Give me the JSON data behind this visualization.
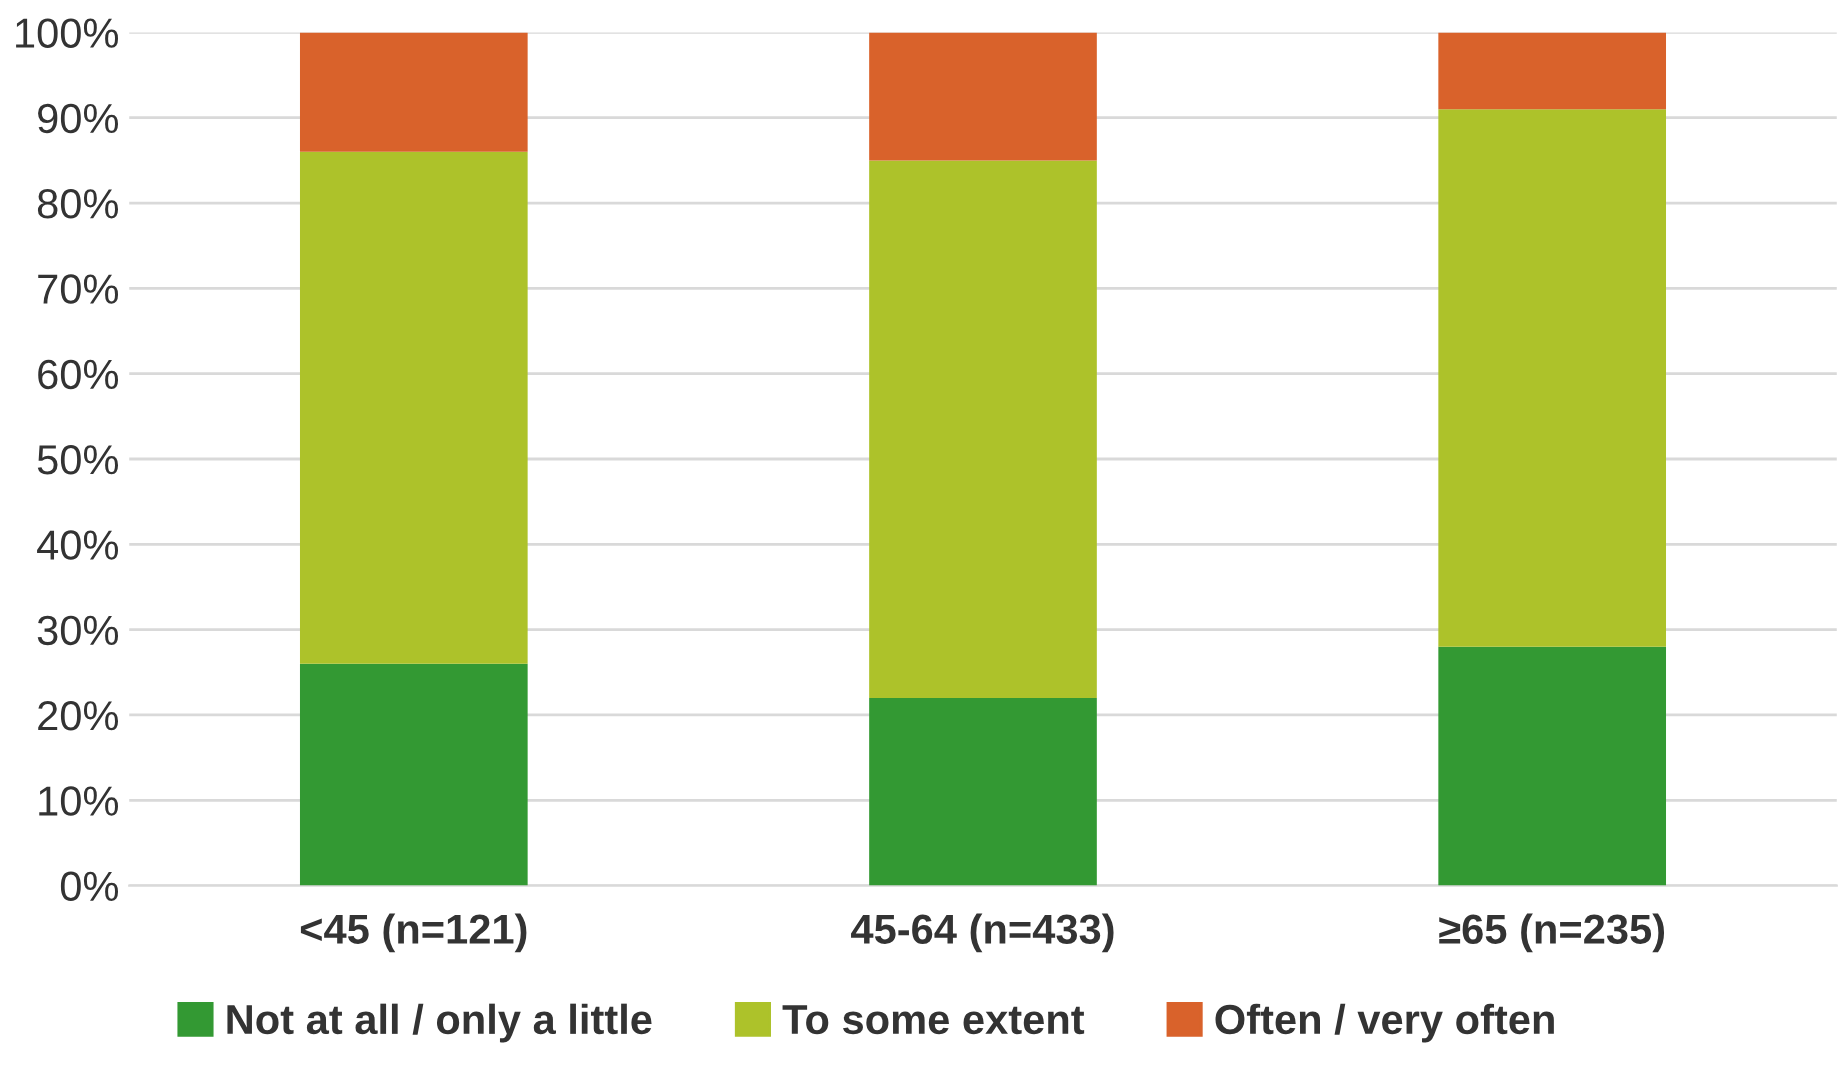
{
  "chart_data": {
    "type": "bar",
    "stacked": true,
    "categories": [
      "<45 (n=121)",
      "45-64 (n=433)",
      "≥65 (n=235)"
    ],
    "series": [
      {
        "name": "Not at all / only a little",
        "color": "#339933",
        "values": [
          26,
          22,
          28
        ]
      },
      {
        "name": "To some extent",
        "color": "#adc22a",
        "values": [
          60,
          63,
          63
        ]
      },
      {
        "name": "Often / very often",
        "color": "#d9622b",
        "values": [
          14,
          15,
          9
        ]
      }
    ],
    "ylim": [
      0,
      100
    ],
    "yticks": [
      {
        "value": 0,
        "label": "0%"
      },
      {
        "value": 10,
        "label": "10%"
      },
      {
        "value": 20,
        "label": "20%"
      },
      {
        "value": 30,
        "label": "30%"
      },
      {
        "value": 40,
        "label": "40%"
      },
      {
        "value": 50,
        "label": "50%"
      },
      {
        "value": 60,
        "label": "60%"
      },
      {
        "value": 70,
        "label": "70%"
      },
      {
        "value": 80,
        "label": "80%"
      },
      {
        "value": 90,
        "label": "90%"
      },
      {
        "value": 100,
        "label": "100%"
      }
    ],
    "grid": "y",
    "legend": "bottom"
  }
}
